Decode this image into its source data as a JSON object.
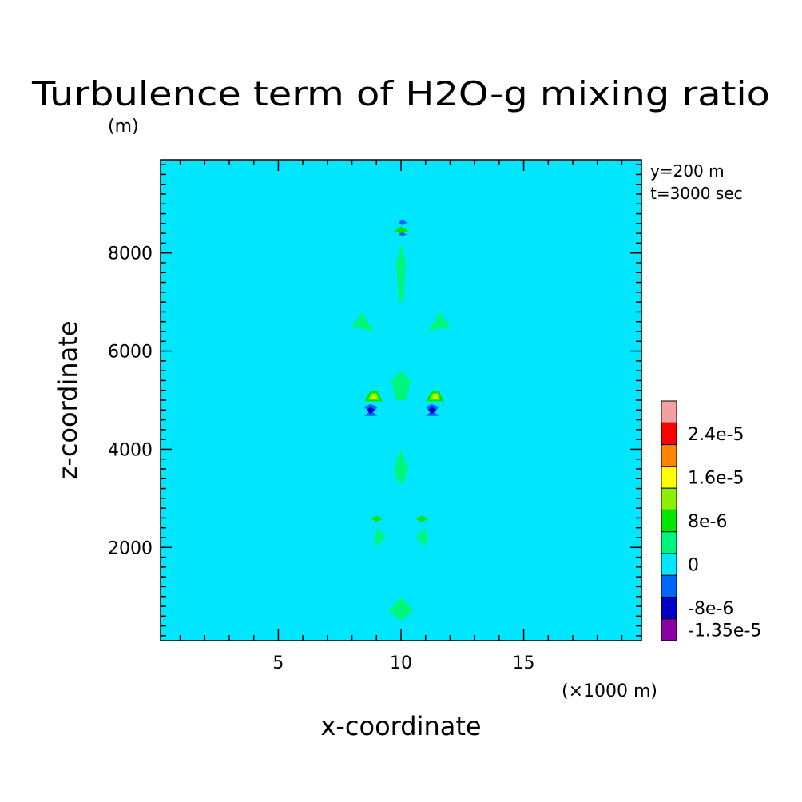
{
  "chart_data": {
    "type": "heatmap",
    "title": "Turbulence term of H2O-g mixing ratio",
    "ylabel": "z-coordinate",
    "yunit": "(m)",
    "xlabel": "x-coordinate",
    "xunit": "(×1000 m)",
    "annotations": [
      "y=200 m",
      "t=3000 sec"
    ],
    "xlim": [
      0.2,
      19.8
    ],
    "ylim": [
      100,
      9900
    ],
    "xticks": [
      {
        "value": 5,
        "label": "5"
      },
      {
        "value": 10,
        "label": "10"
      },
      {
        "value": 15,
        "label": "15"
      }
    ],
    "yticks": [
      {
        "value": 2000,
        "label": "2000"
      },
      {
        "value": 4000,
        "label": "4000"
      },
      {
        "value": 6000,
        "label": "6000"
      },
      {
        "value": 8000,
        "label": "8000"
      }
    ],
    "background_level": "0",
    "colorbar": {
      "levels": [
        {
          "color": "#8b00a0"
        },
        {
          "color": "#0000c8"
        },
        {
          "color": "#0064ff"
        },
        {
          "color": "#00e6ff"
        },
        {
          "color": "#00f57d"
        },
        {
          "color": "#00e600"
        },
        {
          "color": "#8cf000"
        },
        {
          "color": "#ffff00"
        },
        {
          "color": "#ff8200"
        },
        {
          "color": "#ff0000"
        },
        {
          "color": "#f5a0a0"
        }
      ],
      "labels": [
        {
          "text": "-1.35e-5",
          "at": 0.5
        },
        {
          "text": "-8e-6",
          "at": 1.5
        },
        {
          "text": "0",
          "at": 3.5
        },
        {
          "text": "8e-6",
          "at": 5.5
        },
        {
          "text": "1.6e-5",
          "at": 7.5
        },
        {
          "text": "2.4e-5",
          "at": 9.5
        }
      ]
    },
    "regions": [
      {
        "level": 3,
        "points": [
          [
            0.2,
            9900
          ],
          [
            19.8,
            9900
          ],
          [
            19.8,
            9700
          ],
          [
            17.5,
            9600
          ],
          [
            16.0,
            9500
          ],
          [
            14.0,
            9300
          ],
          [
            13.0,
            8600
          ],
          [
            12.5,
            8000
          ],
          [
            12.2,
            7400
          ],
          [
            11.6,
            6500
          ],
          [
            11.5,
            5600
          ],
          [
            11.8,
            5100
          ],
          [
            11.5,
            4500
          ],
          [
            11.7,
            3700
          ],
          [
            12.2,
            3000
          ],
          [
            12.7,
            2300
          ],
          [
            12.8,
            1500
          ],
          [
            12.7,
            800
          ],
          [
            12.5,
            100
          ],
          [
            7.8,
            100
          ],
          [
            7.5,
            800
          ],
          [
            7.3,
            1500
          ],
          [
            7.6,
            2300
          ],
          [
            8.2,
            3000
          ],
          [
            8.6,
            3700
          ],
          [
            8.8,
            4500
          ],
          [
            8.4,
            5100
          ],
          [
            8.5,
            5600
          ],
          [
            8.6,
            6500
          ],
          [
            8.0,
            7400
          ],
          [
            7.6,
            8000
          ],
          [
            7.0,
            8600
          ],
          [
            6.2,
            9300
          ],
          [
            4.0,
            9500
          ],
          [
            2.5,
            9600
          ],
          [
            0.2,
            9700
          ]
        ]
      },
      {
        "level": 3,
        "points": [
          [
            0.2,
            300
          ],
          [
            1.5,
            450
          ],
          [
            3.0,
            650
          ],
          [
            3.6,
            800
          ],
          [
            2.5,
            700
          ],
          [
            0.2,
            450
          ]
        ]
      },
      {
        "level": 3,
        "points": [
          [
            19.8,
            300
          ],
          [
            18.5,
            450
          ],
          [
            17.0,
            650
          ],
          [
            16.4,
            800
          ],
          [
            17.5,
            700
          ],
          [
            19.8,
            450
          ]
        ]
      },
      {
        "level": 4,
        "points": [
          [
            9.6,
            5400
          ],
          [
            10.0,
            5600
          ],
          [
            10.4,
            5400
          ],
          [
            10.2,
            5000
          ],
          [
            9.8,
            5000
          ]
        ]
      },
      {
        "level": 4,
        "points": [
          [
            9.7,
            3600
          ],
          [
            10.0,
            4000
          ],
          [
            10.3,
            3600
          ],
          [
            10.1,
            3300
          ],
          [
            9.9,
            3300
          ]
        ]
      },
      {
        "level": 4,
        "points": [
          [
            9.8,
            7800
          ],
          [
            10.0,
            8200
          ],
          [
            10.2,
            7800
          ],
          [
            10.1,
            7000
          ],
          [
            9.9,
            7000
          ]
        ]
      },
      {
        "level": 4,
        "points": [
          [
            8.0,
            6500
          ],
          [
            8.9,
            6400
          ],
          [
            8.4,
            6800
          ]
        ]
      },
      {
        "level": 4,
        "points": [
          [
            12.0,
            6500
          ],
          [
            11.1,
            6400
          ],
          [
            11.6,
            6800
          ]
        ]
      },
      {
        "level": 4,
        "points": [
          [
            8.9,
            2000
          ],
          [
            9.4,
            2200
          ],
          [
            9.0,
            2400
          ]
        ]
      },
      {
        "level": 4,
        "points": [
          [
            11.1,
            2000
          ],
          [
            10.6,
            2200
          ],
          [
            11.0,
            2400
          ]
        ]
      },
      {
        "level": 4,
        "points": [
          [
            9.5,
            700
          ],
          [
            10.0,
            1000
          ],
          [
            10.5,
            700
          ],
          [
            10.0,
            500
          ]
        ]
      },
      {
        "level": 5,
        "points": [
          [
            9.0,
            2520
          ],
          [
            9.25,
            2580
          ],
          [
            9.0,
            2650
          ],
          [
            8.8,
            2580
          ]
        ]
      },
      {
        "level": 5,
        "points": [
          [
            10.85,
            2520
          ],
          [
            11.1,
            2580
          ],
          [
            10.85,
            2650
          ],
          [
            10.6,
            2580
          ]
        ]
      },
      {
        "level": 5,
        "points": [
          [
            10.0,
            8380
          ],
          [
            10.3,
            8450
          ],
          [
            10.0,
            8540
          ],
          [
            9.75,
            8450
          ]
        ]
      },
      {
        "level": 2,
        "points": [
          [
            10.05,
            8560
          ],
          [
            10.25,
            8620
          ],
          [
            10.05,
            8680
          ],
          [
            9.9,
            8620
          ]
        ]
      },
      {
        "level": 2,
        "points": [
          [
            10.05,
            8340
          ],
          [
            10.25,
            8380
          ],
          [
            10.05,
            8420
          ],
          [
            9.9,
            8380
          ]
        ]
      },
      {
        "level": 2,
        "points": [
          [
            8.75,
            4920
          ],
          [
            9.05,
            4860
          ],
          [
            8.85,
            4760
          ],
          [
            9.05,
            4680
          ],
          [
            8.5,
            4680
          ],
          [
            8.7,
            4760
          ],
          [
            8.5,
            4860
          ]
        ]
      },
      {
        "level": 1,
        "points": [
          [
            8.75,
            4860
          ],
          [
            8.95,
            4800
          ],
          [
            8.75,
            4720
          ],
          [
            8.6,
            4800
          ]
        ]
      },
      {
        "level": 2,
        "points": [
          [
            11.25,
            4920
          ],
          [
            11.55,
            4860
          ],
          [
            11.35,
            4760
          ],
          [
            11.55,
            4680
          ],
          [
            11.0,
            4680
          ],
          [
            11.2,
            4760
          ],
          [
            11.0,
            4860
          ]
        ]
      },
      {
        "level": 1,
        "points": [
          [
            11.25,
            4860
          ],
          [
            11.45,
            4800
          ],
          [
            11.25,
            4720
          ],
          [
            11.1,
            4800
          ]
        ]
      },
      {
        "level": 5,
        "points": [
          [
            8.5,
            4980
          ],
          [
            8.75,
            5180
          ],
          [
            9.05,
            5180
          ],
          [
            9.25,
            4980
          ]
        ]
      },
      {
        "level": 6,
        "points": [
          [
            8.65,
            5010
          ],
          [
            8.8,
            5140
          ],
          [
            9.0,
            5140
          ],
          [
            9.1,
            5010
          ]
        ]
      },
      {
        "level": 7,
        "points": [
          [
            8.8,
            5040
          ],
          [
            8.9,
            5110
          ],
          [
            9.0,
            5040
          ]
        ]
      },
      {
        "level": 5,
        "points": [
          [
            11.0,
            4980
          ],
          [
            11.25,
            5180
          ],
          [
            11.55,
            5180
          ],
          [
            11.75,
            4980
          ]
        ]
      },
      {
        "level": 6,
        "points": [
          [
            11.15,
            5010
          ],
          [
            11.3,
            5140
          ],
          [
            11.5,
            5140
          ],
          [
            11.6,
            5010
          ]
        ]
      },
      {
        "level": 7,
        "points": [
          [
            11.3,
            5040
          ],
          [
            11.4,
            5110
          ],
          [
            11.5,
            5040
          ]
        ]
      }
    ]
  }
}
